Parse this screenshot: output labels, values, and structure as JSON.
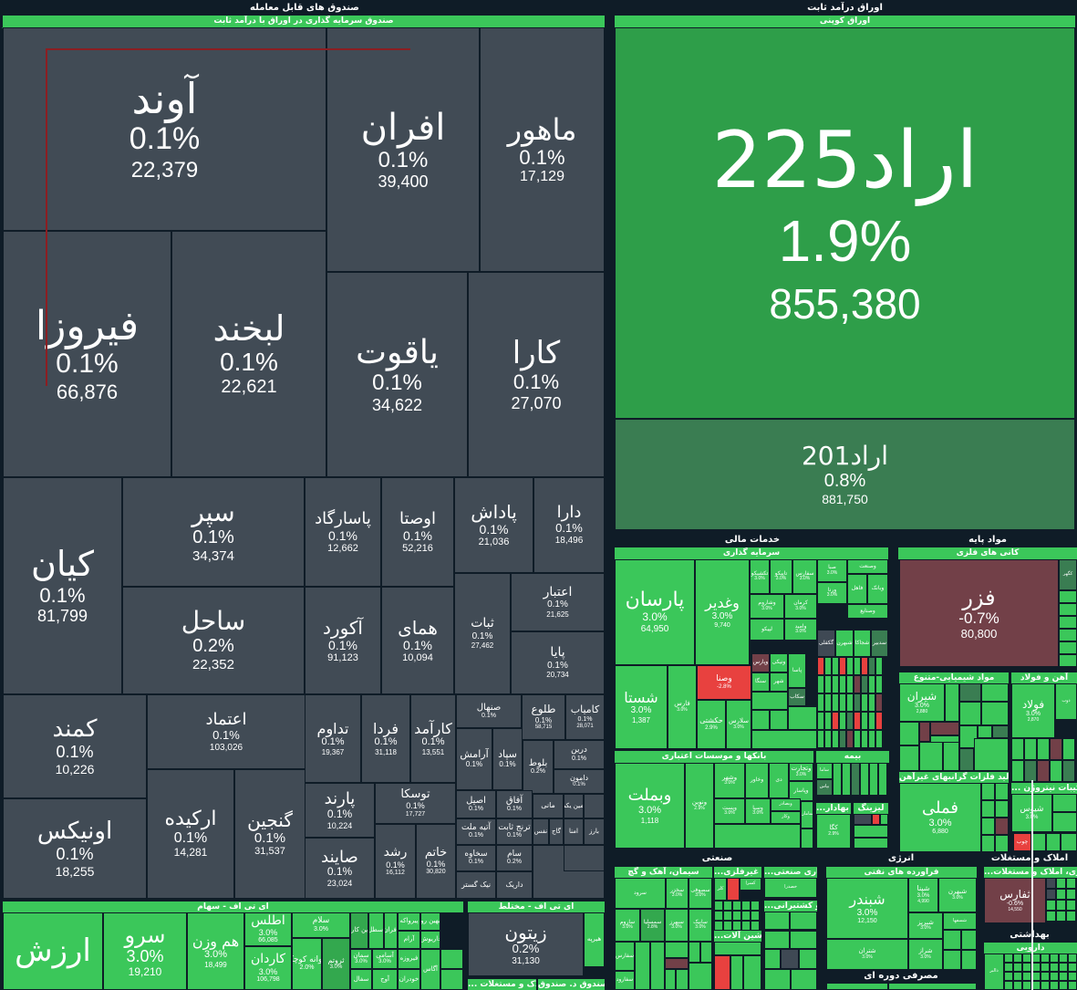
{
  "app": {
    "name": "Tehran Stock Market Treemap",
    "colors": {
      "background": "#0f1c27",
      "neutral_tile": "#414b55",
      "positive": "#3bc75a",
      "positive_strong": "#2e9e49",
      "positive_dim": "#3a7d52",
      "negative": "#e8413f",
      "negative_dim": "#724048"
    }
  },
  "left_panel": {
    "title": "صندوق های قابل معامله",
    "industry": "صندوق سرمایه گذاری در اوراق با درآمد ثابت",
    "tiles": [
      {
        "symbol": "آوند",
        "change": "0.1%",
        "value": "22,379"
      },
      {
        "symbol": "افران",
        "change": "0.1%",
        "value": "39,400"
      },
      {
        "symbol": "ماهور",
        "change": "0.1%",
        "value": "17,129"
      },
      {
        "symbol": "فیروزا",
        "change": "0.1%",
        "value": "66,876"
      },
      {
        "symbol": "لبخند",
        "change": "0.1%",
        "value": "22,621"
      },
      {
        "symbol": "یاقوت",
        "change": "0.1%",
        "value": "34,622"
      },
      {
        "symbol": "کارا",
        "change": "0.1%",
        "value": "27,070"
      },
      {
        "symbol": "کیان",
        "change": "0.1%",
        "value": "81,799"
      },
      {
        "symbol": "سپر",
        "change": "0.1%",
        "value": "34,374"
      },
      {
        "symbol": "ساحل",
        "change": "0.2%",
        "value": "22,352"
      },
      {
        "symbol": "پاسارگاد",
        "change": "0.1%",
        "value": "12,662"
      },
      {
        "symbol": "اوصتا",
        "change": "0.1%",
        "value": "52,216"
      },
      {
        "symbol": "پاداش",
        "change": "0.1%",
        "value": "21,036"
      },
      {
        "symbol": "دارا",
        "change": "0.1%",
        "value": "18,496"
      },
      {
        "symbol": "آکورد",
        "change": "0.1%",
        "value": "91,123"
      },
      {
        "symbol": "همای",
        "change": "0.1%",
        "value": "10,094"
      },
      {
        "symbol": "ثبات",
        "change": "0.1%",
        "value": "27,462"
      },
      {
        "symbol": "اعتبار",
        "change": "0.1%",
        "value": "21,625"
      },
      {
        "symbol": "پایا",
        "change": "0.1%",
        "value": "20,734"
      },
      {
        "symbol": "کمند",
        "change": "0.1%",
        "value": "10,226"
      },
      {
        "symbol": "اعتماد",
        "change": "0.1%",
        "value": "103,026"
      },
      {
        "symbol": "اونیکس",
        "change": "0.1%",
        "value": "18,255"
      },
      {
        "symbol": "ارکیده",
        "change": "0.1%",
        "value": "14,281"
      },
      {
        "symbol": "گنجین",
        "change": "0.1%",
        "value": "31,537"
      },
      {
        "symbol": "تداوم",
        "change": "0.1%",
        "value": "19,367"
      },
      {
        "symbol": "فردا",
        "change": "0.1%",
        "value": "31,118"
      },
      {
        "symbol": "کارآمد",
        "change": "0.1%",
        "value": "13,551"
      },
      {
        "symbol": "صنهال",
        "change": "0.1%",
        "value": ""
      },
      {
        "symbol": "طلوع",
        "change": "0.1%",
        "value": "58,715"
      },
      {
        "symbol": "کامیاب",
        "change": "0.1%",
        "value": "28,071"
      },
      {
        "symbol": "آرامش",
        "change": "0.1%",
        "value": ""
      },
      {
        "symbol": "سپاد",
        "change": "0.1%",
        "value": ""
      },
      {
        "symbol": "بلوط",
        "change": "0.2%",
        "value": ""
      },
      {
        "symbol": "درین",
        "change": "0.1%",
        "value": ""
      },
      {
        "symbol": "دامون",
        "change": "0.1%",
        "value": ""
      },
      {
        "symbol": "پارند",
        "change": "0.1%",
        "value": "10,224"
      },
      {
        "symbol": "توسکا",
        "change": "0.1%",
        "value": "17,727"
      },
      {
        "symbol": "اصیل",
        "change": "0.1%",
        "value": ""
      },
      {
        "symbol": "آفاق",
        "change": "0.1%",
        "value": ""
      },
      {
        "symbol": "مانی",
        "change": "",
        "value": ""
      },
      {
        "symbol": "امین یکم",
        "change": "",
        "value": ""
      },
      {
        "symbol": "آتیه ملت",
        "change": "0.1%",
        "value": ""
      },
      {
        "symbol": "ترنج ثابت",
        "change": "0.1%",
        "value": ""
      },
      {
        "symbol": "نفس",
        "change": "",
        "value": ""
      },
      {
        "symbol": "گاج",
        "change": "",
        "value": ""
      },
      {
        "symbol": "امنا",
        "change": "",
        "value": ""
      },
      {
        "symbol": "بارز",
        "change": "",
        "value": ""
      },
      {
        "symbol": "صایند",
        "change": "0.1%",
        "value": "23,024"
      },
      {
        "symbol": "رشد",
        "change": "0.1%",
        "value": "16,112"
      },
      {
        "symbol": "خاتم",
        "change": "0.1%",
        "value": "30,820"
      },
      {
        "symbol": "سخاوه",
        "change": "0.1%",
        "value": ""
      },
      {
        "symbol": "سام",
        "change": "0.2%",
        "value": ""
      },
      {
        "symbol": "نیک گستر",
        "change": "",
        "value": ""
      },
      {
        "symbol": "داریک",
        "change": "",
        "value": ""
      }
    ]
  },
  "etf_panel": {
    "stocks_title": "ای تی اف - سهام",
    "mixed_title": "ای تی اف - مختلط",
    "stocks_tiles": [
      {
        "symbol": "ارزش",
        "change": "",
        "value": ""
      },
      {
        "symbol": "سرو",
        "change": "3.0%",
        "value": "19,210"
      },
      {
        "symbol": "هم وزن",
        "change": "3.0%",
        "value": "18,499"
      },
      {
        "symbol": "اطلس",
        "change": "3.0%",
        "value": "66,085"
      },
      {
        "symbol": "کاردان",
        "change": "3.0%",
        "value": "106,798"
      },
      {
        "symbol": "سلام",
        "change": "3.0%",
        "value": ""
      },
      {
        "symbol": "جوانه کوچک",
        "change": "2.0%",
        "value": ""
      },
      {
        "symbol": "ثروتم",
        "change": "3.0%",
        "value": ""
      },
      {
        "symbol": "زرین کاران",
        "change": "",
        "value": ""
      },
      {
        "symbol": "اسطل",
        "change": "",
        "value": ""
      },
      {
        "symbol": "افران",
        "change": "",
        "value": ""
      },
      {
        "symbol": "پیرواکه",
        "change": "",
        "value": ""
      },
      {
        "symbol": "بهین رو",
        "change": "",
        "value": ""
      },
      {
        "symbol": "آرام",
        "change": "",
        "value": ""
      },
      {
        "symbol": "داریوش",
        "change": "",
        "value": ""
      },
      {
        "symbol": "سمان",
        "change": "3.0%",
        "value": ""
      },
      {
        "symbol": "آسامی",
        "change": "3.0%",
        "value": ""
      },
      {
        "symbol": "فیروزه",
        "change": "",
        "value": ""
      },
      {
        "symbol": "سفال",
        "change": "",
        "value": ""
      },
      {
        "symbol": "آوج",
        "change": "",
        "value": ""
      },
      {
        "symbol": "خودران",
        "change": "",
        "value": ""
      },
      {
        "symbol": "آگاس",
        "change": "",
        "value": ""
      }
    ],
    "mixed_tiles": [
      {
        "symbol": "زیتون",
        "change": "0.2%",
        "value": "31,130"
      },
      {
        "symbol": "هیرپه",
        "change": "",
        "value": ""
      }
    ],
    "footer_labels": [
      "... املاک و مستغلات",
      "صندوق د. صندوق"
    ]
  },
  "right_panel": {
    "title": "اوراق درآمد ثابت",
    "industry": "اوراق کوپنی",
    "tiles": [
      {
        "symbol": "اراد225",
        "change": "1.9%",
        "value": "855,380"
      },
      {
        "symbol": "اراد201",
        "change": "0.8%",
        "value": "881,750"
      }
    ]
  },
  "market_map": {
    "sectors": {
      "financial": {
        "title": "خدمات مالی",
        "investment": {
          "title": "سرمایه گذاری",
          "tiles": [
            {
              "symbol": "پارسان",
              "change": "3.0%",
              "value": "64,950"
            },
            {
              "symbol": "وغدیر",
              "change": "3.0%",
              "value": "9,740"
            },
            {
              "symbol": "تکشیکو",
              "change": "3.0%"
            },
            {
              "symbol": "تاپیکو",
              "change": "3.0%"
            },
            {
              "symbol": "سفارس",
              "change": "3.0%"
            },
            {
              "symbol": "صبا",
              "change": "3.0%"
            },
            {
              "symbol": "ورنا",
              "change": "3.0%"
            },
            {
              "symbol": "وصنعت",
              "change": ""
            },
            {
              "symbol": "فاهل",
              "change": ""
            },
            {
              "symbol": "وبانک",
              "change": ""
            },
            {
              "symbol": "وشاروم",
              "change": "3.0%"
            },
            {
              "symbol": "کرمان",
              "change": "3.0%"
            },
            {
              "symbol": "وصنایع",
              "change": ""
            },
            {
              "symbol": "لپیکو",
              "change": ""
            },
            {
              "symbol": "وامید",
              "change": "3.0%"
            },
            {
              "symbol": "گکفلی",
              "change": ""
            },
            {
              "symbol": "شبهرن",
              "change": ""
            },
            {
              "symbol": "شجاکا",
              "change": ""
            },
            {
              "symbol": "سدبیر",
              "change": ""
            },
            {
              "symbol": "وصنا",
              "change": "-2.8%"
            },
            {
              "symbol": "وپارس",
              "change": ""
            },
            {
              "symbol": "ونیکی",
              "change": ""
            },
            {
              "symbol": "پاسا",
              "change": ""
            },
            {
              "symbol": "سنگا",
              "change": ""
            },
            {
              "symbol": "شهر",
              "change": ""
            },
            {
              "symbol": "سکاب",
              "change": ""
            },
            {
              "symbol": "شستا",
              "change": "3.0%",
              "value": "1,387"
            },
            {
              "symbol": "فارس",
              "change": "3.0%"
            },
            {
              "symbol": "حکشتی",
              "change": "2.9%"
            },
            {
              "symbol": "سلارس",
              "change": "3.0%"
            }
          ]
        },
        "banks": {
          "title": "بانکها و موسسات اعتباری",
          "tiles": [
            {
              "symbol": "وبملت",
              "change": "3.0%",
              "value": "1,118"
            },
            {
              "symbol": "ونوین",
              "change": "2.9%"
            },
            {
              "symbol": "وشهر",
              "change": "3.0%"
            },
            {
              "symbol": "وخاور",
              "change": ""
            },
            {
              "symbol": "دی",
              "change": ""
            },
            {
              "symbol": "وتجارت",
              "change": "3.0%"
            },
            {
              "symbol": "وپاسار",
              "change": ""
            },
            {
              "symbol": "وپست",
              "change": "3.0%"
            },
            {
              "symbol": "وسپا",
              "change": "3.0%"
            },
            {
              "symbol": "وبصادر",
              "change": ""
            },
            {
              "symbol": "وکار",
              "change": ""
            },
            {
              "symbol": "سامان",
              "change": ""
            }
          ]
        },
        "insurance": {
          "title": "بیمه",
          "tiles": [
            {
              "symbol": "ساما"
            },
            {
              "symbol": "بپاس"
            }
          ]
        },
        "leasing": {
          "title": "...رق بهادار",
          "tiles": [
            {
              "symbol": "کگا",
              "change": "2.9%"
            }
          ]
        },
        "leasing2": {
          "title": "لیزینگ"
        },
        "misc": {
          "title": "... سرمایه"
        }
      },
      "basic_materials": {
        "title": "مواد پایه",
        "metal_ores": {
          "title": "کانی های فلزی",
          "tiles": [
            {
              "symbol": "فزر",
              "change": "-0.7%",
              "value": "80,800"
            },
            {
              "symbol": "کگهر"
            }
          ]
        },
        "chemicals": {
          "title": "مواد شیمیایی-متنوع",
          "tiles": [
            {
              "symbol": "شیران",
              "change": "3.0%",
              "value": "2,880"
            },
            {
              "symbol": "شپدیس",
              "change": ""
            },
            {
              "symbol": "شخارک",
              "change": ""
            },
            {
              "symbol": "شکلر",
              "change": ""
            }
          ]
        },
        "steel": {
          "title": "آهن و فولاد",
          "tiles": [
            {
              "symbol": "فولاد",
              "change": "3.0%",
              "value": "2,870"
            },
            {
              "symbol": "ذوب"
            }
          ]
        },
        "non_ferrous": {
          "title": "تولید فلزات گرانبهای غیرآهن",
          "tiles": [
            {
              "symbol": "فملی",
              "change": "3.0%",
              "value": "6,880"
            }
          ]
        },
        "nitrogen": {
          "title": "... و ترکیبات نیتروژن",
          "tiles": [
            {
              "symbol": "شیوس",
              "change": "3.0%"
            }
          ]
        },
        "wood": {
          "tiles": [
            {
              "symbol": "چوب"
            }
          ]
        }
      },
      "industrial": {
        "title": "صنعتی",
        "cement": {
          "title": "سیمان، آهک و گچ",
          "tiles": [
            {
              "symbol": "سرود"
            },
            {
              "symbol": "سخزر",
              "change": "3.0%"
            },
            {
              "symbol": "سصوفی",
              "change": "3.0%"
            },
            {
              "symbol": "ساروم",
              "change": "3.0%"
            },
            {
              "symbol": "سمسلیا",
              "change": "2.8%"
            },
            {
              "symbol": "سبهرز",
              "change": "3.0%"
            },
            {
              "symbol": "سابیک",
              "change": "3.0%"
            },
            {
              "symbol": "سفارس"
            },
            {
              "symbol": "سفارود"
            }
          ]
        },
        "non_metal": {
          "title": "...انی غیرفلزی",
          "tiles": [
            {
              "symbol": "کلر"
            },
            {
              "symbol": "کسرا"
            }
          ]
        },
        "contracting": {
          "title": "...انکاری صنعتی",
          "tiles": [
            {
              "symbol": "خصدرا"
            }
          ]
        },
        "shipping": {
          "title": "...بنادر و کشتیرانی"
        },
        "machinery": {
          "title": "...ماشین آلات"
        },
        "rubber": {
          "title": "...ریکی"
        },
        "other": {
          "title": "...نعتی"
        },
        "engineering": {
          "title": "...نفتی",
          "tiles": [
            {
              "symbol": "رنیک"
            }
          ]
        },
        "steel_products": {
          "title": "...ساخن"
        },
        "misc1": {
          "title": "...ی"
        },
        "misc2": {
          "title": "...ری"
        },
        "misc3": {
          "title": "...نیک"
        }
      },
      "energy": {
        "title": "انرژی",
        "oil_products": {
          "title": "فراورده های نفتی",
          "tiles": [
            {
              "symbol": "شبندر",
              "change": "3.0%",
              "value": "12,150"
            },
            {
              "symbol": "شپنا",
              "change": "3.0%",
              "value": "4,990"
            },
            {
              "symbol": "شبهرن",
              "change": "3.0%"
            },
            {
              "symbol": "شتران",
              "change": "3.0%"
            },
            {
              "symbol": "شبریز",
              "change": "3.0%"
            },
            {
              "symbol": "شراز",
              "change": "3.0%"
            },
            {
              "symbol": "شسفها"
            }
          ]
        }
      },
      "real_estate": {
        "title": "املاک و مستغلات",
        "subtitle": "...بوه سازی، املاک و مستغلات",
        "tiles": [
          {
            "symbol": "ثفارس",
            "change": "-0.6%",
            "value": "14,550"
          }
        ]
      },
      "health": {
        "title": "بهداشتی",
        "pharma": {
          "title": "دارویی",
          "tiles": [
            {
              "symbol": "دالبر"
            }
          ]
        }
      },
      "consumer_cyclical": {
        "title": "مصرفی دوره ای",
        "subtitles": [
          "خودرو",
          "قطعات خودرو"
        ]
      }
    }
  }
}
